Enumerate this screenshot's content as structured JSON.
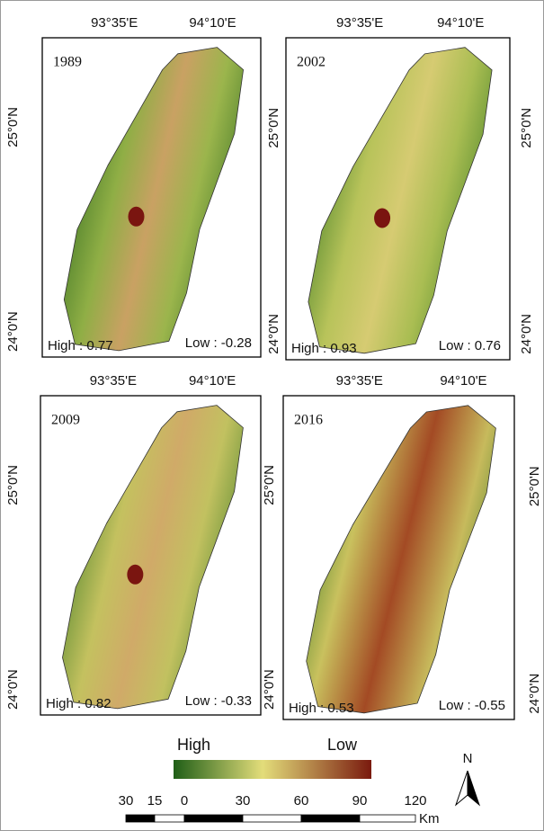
{
  "panels": [
    {
      "year": "1989",
      "lon_labels": [
        "93°35'E",
        "94°10'E"
      ],
      "lat_labels_left": [
        "25°0'N",
        "24°0'N"
      ],
      "high": "High : 0.77",
      "low": "Low : -0.28"
    },
    {
      "year": "2002",
      "lon_labels": [
        "93°35'E",
        "94°10'E"
      ],
      "lat_labels_left": [
        "25°0'N",
        "24°0'N"
      ],
      "lat_labels_right": [
        "25°0'N",
        "24°0'N"
      ],
      "high": "High : 0.93",
      "low": "Low : 0.76"
    },
    {
      "year": "2009",
      "lon_labels": [
        "93°35'E",
        "94°10'E"
      ],
      "lat_labels_left": [
        "25°0'N",
        "24°0'N"
      ],
      "lat_labels_right": [
        "25°0'N",
        "24°0'N"
      ],
      "high": "High : 0.82",
      "low": "Low : -0.33"
    },
    {
      "year": "2016",
      "lon_labels": [
        "93°35'E",
        "94°10'E"
      ],
      "lat_labels_right": [
        "25°0'N",
        "24°0'N"
      ],
      "high": "High : 0.53",
      "low": "Low : -0.55"
    }
  ],
  "legend": {
    "high": "High",
    "low": "Low"
  },
  "north": "N",
  "scale_bar": {
    "labels": [
      "30",
      "15",
      "0",
      "30",
      "60",
      "90",
      "120"
    ],
    "unit": "Km"
  }
}
